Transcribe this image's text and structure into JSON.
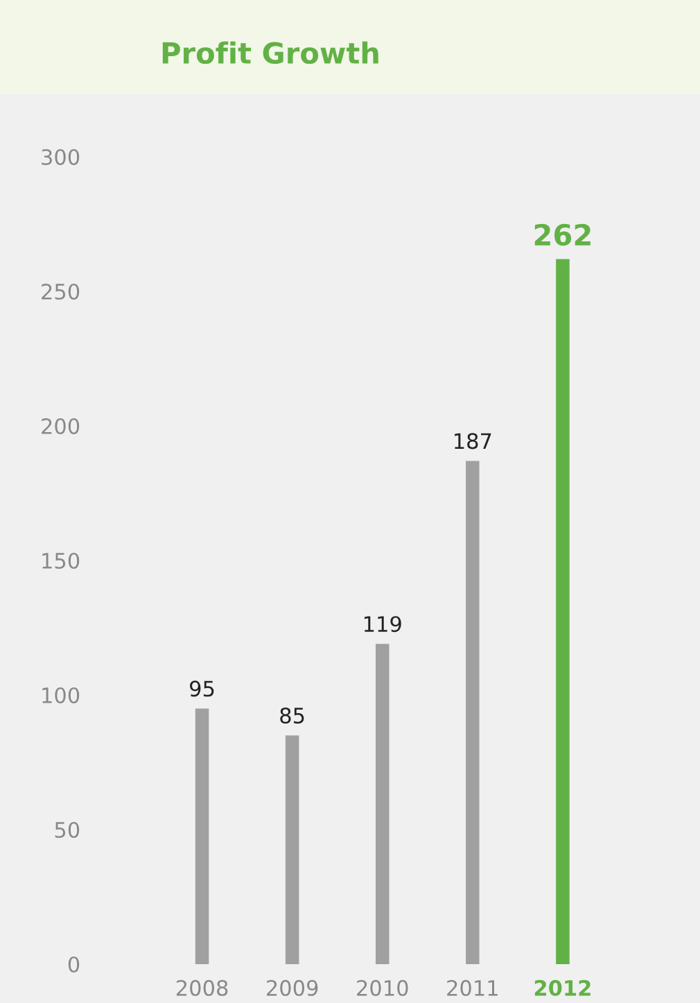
{
  "chart_data": {
    "type": "bar",
    "title": "Profit Growth",
    "categories": [
      "2008",
      "2009",
      "2010",
      "2011",
      "2012"
    ],
    "values": [
      95,
      85,
      119,
      187,
      262
    ],
    "colors": [
      "#a0a0a0",
      "#a0a0a0",
      "#a0a0a0",
      "#a0a0a0",
      "#62b146"
    ],
    "ylim": [
      0,
      300
    ],
    "yticks": [
      0,
      50,
      100,
      150,
      200,
      250,
      300
    ],
    "data_labels": true,
    "grid": false,
    "legend": false
  }
}
